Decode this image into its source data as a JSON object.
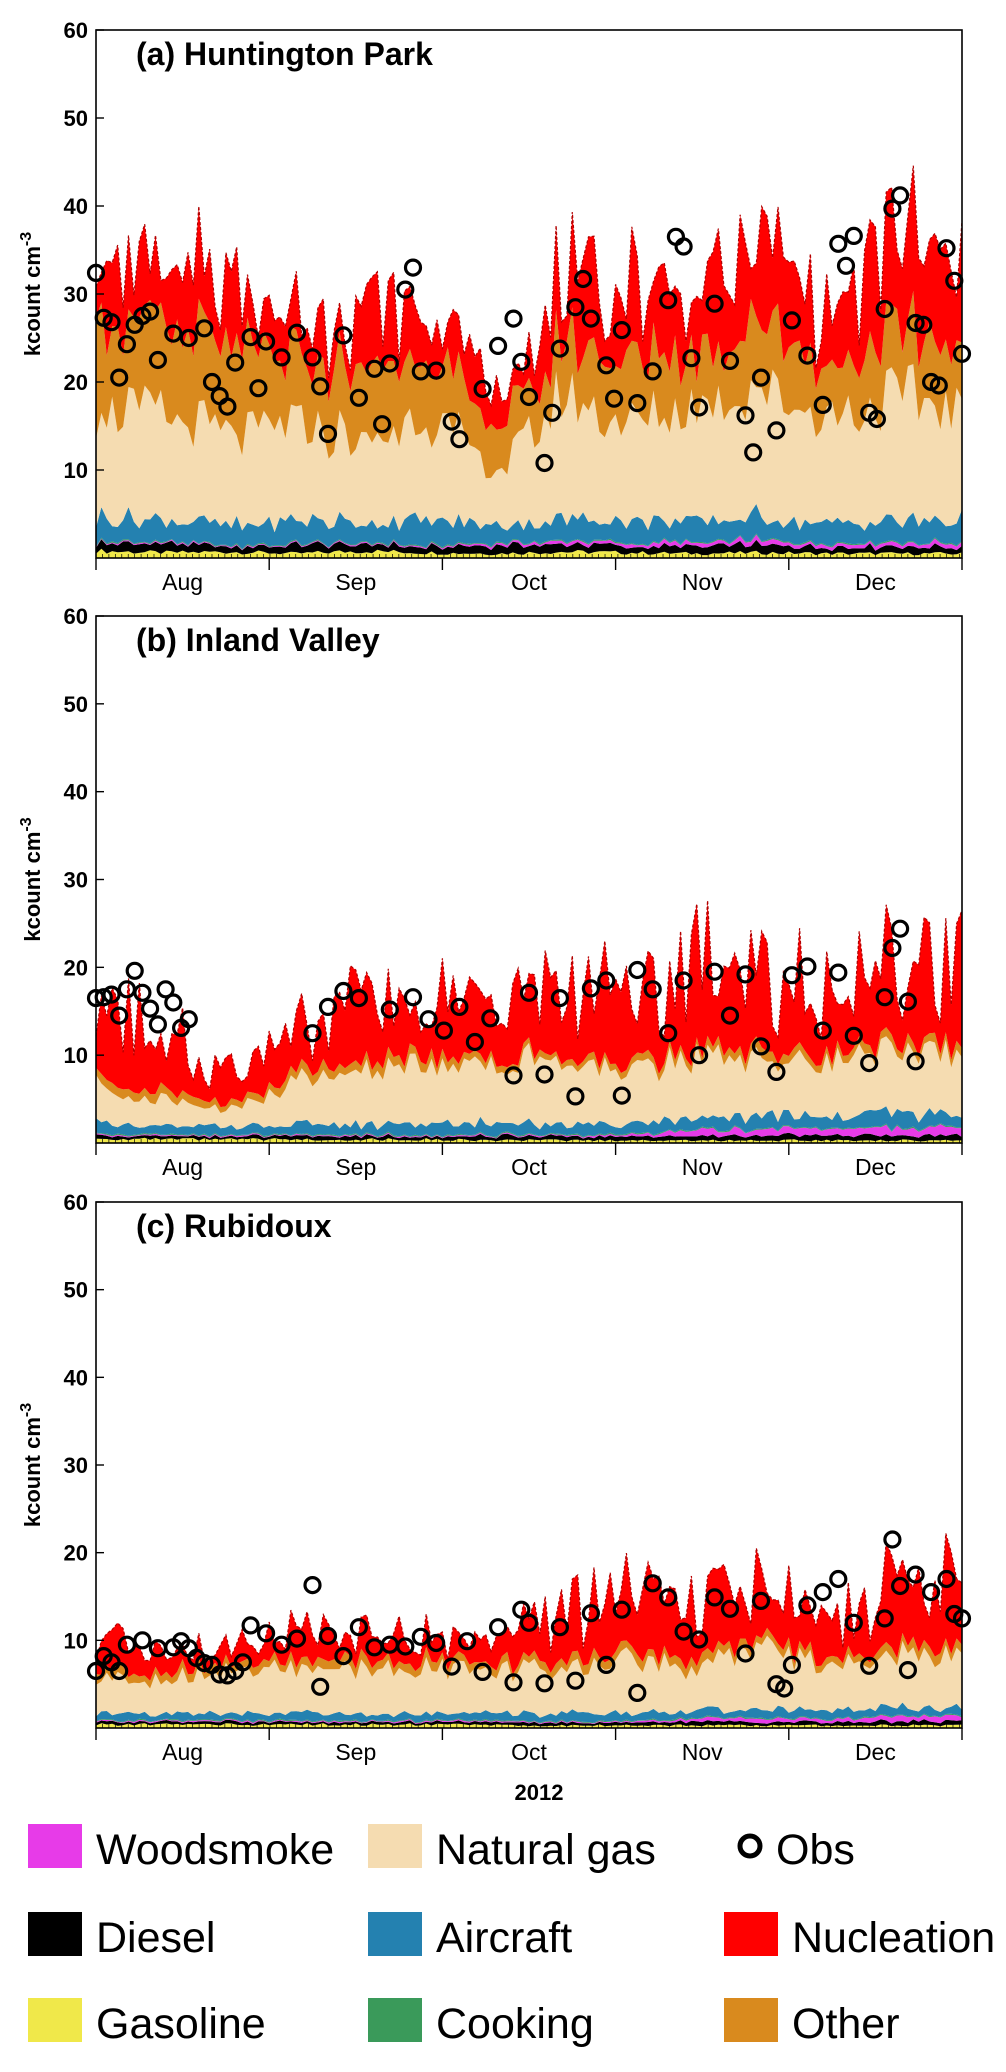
{
  "chart_data": [
    {
      "type": "area",
      "title": "(a) Huntington Park",
      "ylabel": "kcount cm",
      "ylabel_sup": "-3",
      "ylim": [
        0,
        60
      ],
      "yticks": [
        "10",
        "20",
        "30",
        "40",
        "50",
        "60"
      ],
      "months": [
        "Aug",
        "Sep",
        "Oct",
        "Nov",
        "Dec"
      ],
      "xlabel": "",
      "stack": {
        "Gasoline": [
          0.8,
          0.6,
          0.7,
          0.5,
          0.8,
          0.6,
          0.5,
          0.7,
          0.6,
          0.5,
          0.6,
          0.5,
          0.5,
          0.5
        ],
        "Diesel": [
          0.9,
          1.0,
          0.6,
          0.9,
          0.8,
          0.7,
          1.0,
          0.9,
          0.7,
          0.8,
          0.9,
          0.7,
          0.8,
          0.7
        ],
        "Woodsmoke": [
          0.1,
          0.1,
          0.1,
          0.1,
          0.1,
          0.1,
          0.2,
          0.3,
          0.3,
          0.4,
          0.5,
          0.4,
          0.4,
          0.4
        ],
        "Cooking": [
          0.1,
          0.1,
          0.1,
          0.1,
          0.1,
          0.1,
          0.1,
          0.1,
          0.1,
          0.1,
          0.1,
          0.1,
          0.1,
          0.1
        ],
        "Aircraft": [
          2.8,
          2.5,
          2.2,
          2.6,
          2.3,
          2.8,
          2.0,
          2.4,
          2.6,
          2.2,
          2.5,
          2.3,
          2.4,
          2.6
        ],
        "Natural gas": [
          13,
          12,
          10,
          11,
          9,
          12,
          6,
          14,
          11,
          13,
          15,
          12,
          14,
          13
        ],
        "Other": [
          11,
          9,
          10,
          7,
          8,
          7,
          5,
          6,
          7,
          6,
          8,
          6,
          7,
          7
        ],
        "Nucleation": [
          7,
          5,
          7,
          4,
          7,
          5,
          4,
          6,
          8,
          7,
          9,
          6,
          10,
          8
        ]
      },
      "obs": [
        {
          "x": 0,
          "y": 32.4
        },
        {
          "x": 0.5,
          "y": 27.3
        },
        {
          "x": 1,
          "y": 26.8
        },
        {
          "x": 1.5,
          "y": 20.5
        },
        {
          "x": 2,
          "y": 24.3
        },
        {
          "x": 2.5,
          "y": 26.5
        },
        {
          "x": 3,
          "y": 27.5
        },
        {
          "x": 3.5,
          "y": 28
        },
        {
          "x": 4,
          "y": 22.5
        },
        {
          "x": 5,
          "y": 25.5
        },
        {
          "x": 6,
          "y": 25
        },
        {
          "x": 7,
          "y": 26.1
        },
        {
          "x": 7.5,
          "y": 20
        },
        {
          "x": 8,
          "y": 18.4
        },
        {
          "x": 8.5,
          "y": 17.2
        },
        {
          "x": 9,
          "y": 22.2
        },
        {
          "x": 10,
          "y": 25.1
        },
        {
          "x": 10.5,
          "y": 19.3
        },
        {
          "x": 11,
          "y": 24.6
        },
        {
          "x": 12,
          "y": 22.8
        },
        {
          "x": 13,
          "y": 25.6
        },
        {
          "x": 14,
          "y": 22.8
        },
        {
          "x": 14.5,
          "y": 19.5
        },
        {
          "x": 15,
          "y": 14.1
        },
        {
          "x": 16,
          "y": 25.3
        },
        {
          "x": 17,
          "y": 18.2
        },
        {
          "x": 18,
          "y": 21.5
        },
        {
          "x": 18.5,
          "y": 15.2
        },
        {
          "x": 19,
          "y": 22.1
        },
        {
          "x": 20,
          "y": 30.5
        },
        {
          "x": 20.5,
          "y": 33
        },
        {
          "x": 21,
          "y": 21.2
        },
        {
          "x": 22,
          "y": 21.3
        },
        {
          "x": 23,
          "y": 15.5
        },
        {
          "x": 23.5,
          "y": 13.5
        },
        {
          "x": 25,
          "y": 19.2
        },
        {
          "x": 26,
          "y": 24.1
        },
        {
          "x": 27,
          "y": 27.2
        },
        {
          "x": 27.5,
          "y": 22.3
        },
        {
          "x": 28,
          "y": 18.3
        },
        {
          "x": 29,
          "y": 10.8
        },
        {
          "x": 29.5,
          "y": 16.5
        },
        {
          "x": 30,
          "y": 23.8
        },
        {
          "x": 31,
          "y": 28.5
        },
        {
          "x": 31.5,
          "y": 31.7
        },
        {
          "x": 32,
          "y": 27.2
        },
        {
          "x": 33,
          "y": 21.9
        },
        {
          "x": 33.5,
          "y": 18.1
        },
        {
          "x": 34,
          "y": 25.9
        },
        {
          "x": 35,
          "y": 17.6
        },
        {
          "x": 36,
          "y": 21.2
        },
        {
          "x": 37,
          "y": 29.3
        },
        {
          "x": 37.5,
          "y": 36.5
        },
        {
          "x": 38,
          "y": 35.4
        },
        {
          "x": 38.5,
          "y": 22.7
        },
        {
          "x": 39,
          "y": 17.1
        },
        {
          "x": 40,
          "y": 28.9
        },
        {
          "x": 41,
          "y": 22.4
        },
        {
          "x": 42,
          "y": 16.2
        },
        {
          "x": 42.5,
          "y": 12
        },
        {
          "x": 43,
          "y": 20.5
        },
        {
          "x": 44,
          "y": 14.5
        },
        {
          "x": 45,
          "y": 27
        },
        {
          "x": 46,
          "y": 23
        },
        {
          "x": 47,
          "y": 17.4
        },
        {
          "x": 48,
          "y": 35.7
        },
        {
          "x": 48.5,
          "y": 33.2
        },
        {
          "x": 49,
          "y": 36.6
        },
        {
          "x": 50,
          "y": 16.5
        },
        {
          "x": 50.5,
          "y": 15.8
        },
        {
          "x": 51,
          "y": 28.3
        },
        {
          "x": 51.5,
          "y": 39.7
        },
        {
          "x": 52,
          "y": 41.2
        },
        {
          "x": 53,
          "y": 26.7
        },
        {
          "x": 53.5,
          "y": 26.5
        },
        {
          "x": 54,
          "y": 20
        },
        {
          "x": 54.5,
          "y": 19.6
        },
        {
          "x": 55,
          "y": 35.2
        },
        {
          "x": 55.5,
          "y": 31.5
        },
        {
          "x": 56,
          "y": 23.2
        }
      ]
    },
    {
      "type": "area",
      "title": "(b) Inland Valley",
      "ylabel": "kcount cm",
      "ylabel_sup": "-3",
      "ylim": [
        0,
        60
      ],
      "yticks": [
        "10",
        "20",
        "30",
        "40",
        "50",
        "60"
      ],
      "months": [
        "Aug",
        "Sep",
        "Oct",
        "Nov",
        "Dec"
      ],
      "xlabel": "",
      "stack": {
        "Gasoline": [
          0.5,
          0.4,
          0.4,
          0.4,
          0.4,
          0.4,
          0.3,
          0.3,
          0.3,
          0.3,
          0.3,
          0.3,
          0.3,
          0.3
        ],
        "Diesel": [
          0.4,
          0.4,
          0.3,
          0.4,
          0.4,
          0.4,
          0.5,
          0.4,
          0.4,
          0.5,
          0.6,
          0.5,
          0.6,
          0.6
        ],
        "Woodsmoke": [
          0.1,
          0.1,
          0.1,
          0.1,
          0.1,
          0.1,
          0.1,
          0.1,
          0.2,
          0.6,
          0.7,
          0.8,
          0.9,
          0.9
        ],
        "Cooking": [
          0.1,
          0.1,
          0.1,
          0.1,
          0.1,
          0.1,
          0.1,
          0.1,
          0.1,
          0.1,
          0.1,
          0.1,
          0.1,
          0.1
        ],
        "Aircraft": [
          1.2,
          1.0,
          1.0,
          1.1,
          1.1,
          1.2,
          1.3,
          1.1,
          1.2,
          1.3,
          1.4,
          1.3,
          1.5,
          1.4
        ],
        "Natural gas": [
          4,
          3,
          2,
          5,
          6,
          7,
          7,
          7,
          6,
          7,
          7,
          6,
          7,
          7
        ],
        "Other": [
          1,
          1,
          0.6,
          1,
          1,
          1,
          0.8,
          0.6,
          0.8,
          0.8,
          1,
          0.9,
          1,
          1
        ],
        "Nucleation": [
          9,
          7,
          3,
          4,
          7,
          6,
          6,
          7,
          8,
          9,
          8,
          7,
          9,
          9
        ]
      },
      "obs": [
        {
          "x": 0,
          "y": 16.5
        },
        {
          "x": 0.5,
          "y": 16.6
        },
        {
          "x": 1,
          "y": 16.9
        },
        {
          "x": 1.5,
          "y": 14.5
        },
        {
          "x": 2,
          "y": 17.5
        },
        {
          "x": 2.5,
          "y": 19.6
        },
        {
          "x": 3,
          "y": 17.1
        },
        {
          "x": 3.5,
          "y": 15.3
        },
        {
          "x": 4,
          "y": 13.5
        },
        {
          "x": 4.5,
          "y": 17.5
        },
        {
          "x": 5,
          "y": 16
        },
        {
          "x": 5.5,
          "y": 13.1
        },
        {
          "x": 6,
          "y": 14.1
        },
        {
          "x": 14,
          "y": 12.5
        },
        {
          "x": 15,
          "y": 15.5
        },
        {
          "x": 16,
          "y": 17.3
        },
        {
          "x": 17,
          "y": 16.5
        },
        {
          "x": 19,
          "y": 15.2
        },
        {
          "x": 20.5,
          "y": 16.6
        },
        {
          "x": 21.5,
          "y": 14.1
        },
        {
          "x": 22.5,
          "y": 12.8
        },
        {
          "x": 23.5,
          "y": 15.5
        },
        {
          "x": 24.5,
          "y": 11.5
        },
        {
          "x": 25.5,
          "y": 14.2
        },
        {
          "x": 27,
          "y": 7.7
        },
        {
          "x": 28,
          "y": 17.1
        },
        {
          "x": 29,
          "y": 7.8
        },
        {
          "x": 30,
          "y": 16.5
        },
        {
          "x": 31,
          "y": 5.3
        },
        {
          "x": 32,
          "y": 17.6
        },
        {
          "x": 33,
          "y": 18.5
        },
        {
          "x": 34,
          "y": 5.4
        },
        {
          "x": 35,
          "y": 19.7
        },
        {
          "x": 36,
          "y": 17.5
        },
        {
          "x": 37,
          "y": 12.5
        },
        {
          "x": 38,
          "y": 18.5
        },
        {
          "x": 39,
          "y": 10
        },
        {
          "x": 40,
          "y": 19.5
        },
        {
          "x": 41,
          "y": 14.5
        },
        {
          "x": 42,
          "y": 19.2
        },
        {
          "x": 43,
          "y": 11
        },
        {
          "x": 44,
          "y": 8.1
        },
        {
          "x": 45,
          "y": 19.1
        },
        {
          "x": 46,
          "y": 20.1
        },
        {
          "x": 47,
          "y": 12.8
        },
        {
          "x": 48,
          "y": 19.4
        },
        {
          "x": 49,
          "y": 12.2
        },
        {
          "x": 50,
          "y": 9.1
        },
        {
          "x": 51,
          "y": 16.6
        },
        {
          "x": 51.5,
          "y": 22.2
        },
        {
          "x": 52,
          "y": 24.4
        },
        {
          "x": 52.5,
          "y": 16.1
        },
        {
          "x": 53,
          "y": 9.3
        }
      ]
    },
    {
      "type": "area",
      "title": "(c) Rubidoux",
      "ylabel": "kcount cm",
      "ylabel_sup": "-3",
      "ylim": [
        0,
        60
      ],
      "yticks": [
        "10",
        "20",
        "30",
        "40",
        "50",
        "60"
      ],
      "months": [
        "Aug",
        "Sep",
        "Oct",
        "Nov",
        "Dec"
      ],
      "xlabel": "2012",
      "stack": {
        "Gasoline": [
          0.4,
          0.4,
          0.4,
          0.4,
          0.4,
          0.4,
          0.3,
          0.3,
          0.3,
          0.3,
          0.3,
          0.3,
          0.3,
          0.3
        ],
        "Diesel": [
          0.3,
          0.3,
          0.3,
          0.3,
          0.3,
          0.3,
          0.3,
          0.3,
          0.3,
          0.4,
          0.4,
          0.4,
          0.5,
          0.5
        ],
        "Woodsmoke": [
          0.1,
          0.1,
          0.1,
          0.1,
          0.1,
          0.1,
          0.1,
          0.1,
          0.1,
          0.3,
          0.4,
          0.3,
          0.5,
          0.5
        ],
        "Cooking": [
          0.1,
          0.1,
          0.1,
          0.1,
          0.1,
          0.1,
          0.1,
          0.1,
          0.1,
          0.1,
          0.1,
          0.1,
          0.1,
          0.1
        ],
        "Aircraft": [
          0.8,
          0.7,
          0.8,
          0.8,
          0.8,
          0.7,
          0.8,
          0.9,
          0.9,
          0.8,
          0.9,
          0.8,
          1,
          0.9
        ],
        "Natural gas": [
          4,
          4,
          5,
          5,
          5,
          5,
          5,
          5,
          6,
          5,
          7,
          5,
          6,
          6
        ],
        "Other": [
          1,
          0.8,
          0.8,
          1,
          1,
          1,
          0.8,
          1,
          1,
          1,
          1,
          0.8,
          1,
          1
        ],
        "Nucleation": [
          3,
          2,
          2,
          3,
          3,
          3,
          3,
          5,
          6,
          6,
          6,
          4,
          7,
          7
        ]
      },
      "obs": [
        {
          "x": 0,
          "y": 6.5
        },
        {
          "x": 0.5,
          "y": 8.2
        },
        {
          "x": 1,
          "y": 7.5
        },
        {
          "x": 1.5,
          "y": 6.5
        },
        {
          "x": 2,
          "y": 9.5
        },
        {
          "x": 3,
          "y": 10
        },
        {
          "x": 4,
          "y": 9.1
        },
        {
          "x": 5,
          "y": 9.2
        },
        {
          "x": 5.5,
          "y": 9.9
        },
        {
          "x": 6,
          "y": 9.1
        },
        {
          "x": 6.5,
          "y": 8
        },
        {
          "x": 7,
          "y": 7.4
        },
        {
          "x": 7.5,
          "y": 7.2
        },
        {
          "x": 8,
          "y": 6.1
        },
        {
          "x": 8.5,
          "y": 6
        },
        {
          "x": 9,
          "y": 6.5
        },
        {
          "x": 9.5,
          "y": 7.5
        },
        {
          "x": 10,
          "y": 11.7
        },
        {
          "x": 11,
          "y": 10.8
        },
        {
          "x": 12,
          "y": 9.5
        },
        {
          "x": 13,
          "y": 10.2
        },
        {
          "x": 14,
          "y": 16.3
        },
        {
          "x": 14.5,
          "y": 4.7
        },
        {
          "x": 15,
          "y": 10.5
        },
        {
          "x": 16,
          "y": 8.2
        },
        {
          "x": 17,
          "y": 11.5
        },
        {
          "x": 18,
          "y": 9.2
        },
        {
          "x": 19,
          "y": 9.5
        },
        {
          "x": 20,
          "y": 9.3
        },
        {
          "x": 21,
          "y": 10.4
        },
        {
          "x": 22,
          "y": 9.7
        },
        {
          "x": 23,
          "y": 7
        },
        {
          "x": 24,
          "y": 9.9
        },
        {
          "x": 25,
          "y": 6.4
        },
        {
          "x": 26,
          "y": 11.5
        },
        {
          "x": 27,
          "y": 5.2
        },
        {
          "x": 27.5,
          "y": 13.5
        },
        {
          "x": 28,
          "y": 12
        },
        {
          "x": 29,
          "y": 5.1
        },
        {
          "x": 30,
          "y": 11.5
        },
        {
          "x": 31,
          "y": 5.4
        },
        {
          "x": 32,
          "y": 13.1
        },
        {
          "x": 33,
          "y": 7.2
        },
        {
          "x": 34,
          "y": 13.5
        },
        {
          "x": 35,
          "y": 4
        },
        {
          "x": 36,
          "y": 16.5
        },
        {
          "x": 37,
          "y": 14.9
        },
        {
          "x": 38,
          "y": 11
        },
        {
          "x": 39,
          "y": 10.1
        },
        {
          "x": 40,
          "y": 14.9
        },
        {
          "x": 41,
          "y": 13.6
        },
        {
          "x": 42,
          "y": 8.5
        },
        {
          "x": 43,
          "y": 14.5
        },
        {
          "x": 44,
          "y": 5
        },
        {
          "x": 44.5,
          "y": 4.5
        },
        {
          "x": 45,
          "y": 7.2
        },
        {
          "x": 46,
          "y": 14
        },
        {
          "x": 47,
          "y": 15.5
        },
        {
          "x": 48,
          "y": 17
        },
        {
          "x": 49,
          "y": 12
        },
        {
          "x": 50,
          "y": 7.1
        },
        {
          "x": 51,
          "y": 12.5
        },
        {
          "x": 51.5,
          "y": 21.5
        },
        {
          "x": 52,
          "y": 16.2
        },
        {
          "x": 52.5,
          "y": 6.6
        },
        {
          "x": 53,
          "y": 17.5
        },
        {
          "x": 54,
          "y": 15.5
        },
        {
          "x": 55,
          "y": 17
        },
        {
          "x": 55.5,
          "y": 13
        },
        {
          "x": 56,
          "y": 12.5
        }
      ]
    }
  ],
  "legend": [
    {
      "label": "Woodsmoke",
      "color": "#e73be8",
      "kind": "swatch"
    },
    {
      "label": "Natural  gas",
      "color": "#f5dcb1",
      "kind": "swatch"
    },
    {
      "label": "Obs",
      "color": "#000000",
      "kind": "circle"
    },
    {
      "label": "Diesel",
      "color": "#000000",
      "kind": "swatch"
    },
    {
      "label": "Aircraft",
      "color": "#2481b0",
      "kind": "swatch"
    },
    {
      "label": "Nucleation",
      "color": "#ff0000",
      "kind": "swatch"
    },
    {
      "label": "Gasoline",
      "color": "#f0e84a",
      "kind": "swatch"
    },
    {
      "label": "Cooking",
      "color": "#3a9a5a",
      "kind": "swatch"
    },
    {
      "label": "Other",
      "color": "#d98a1e",
      "kind": "swatch"
    }
  ]
}
